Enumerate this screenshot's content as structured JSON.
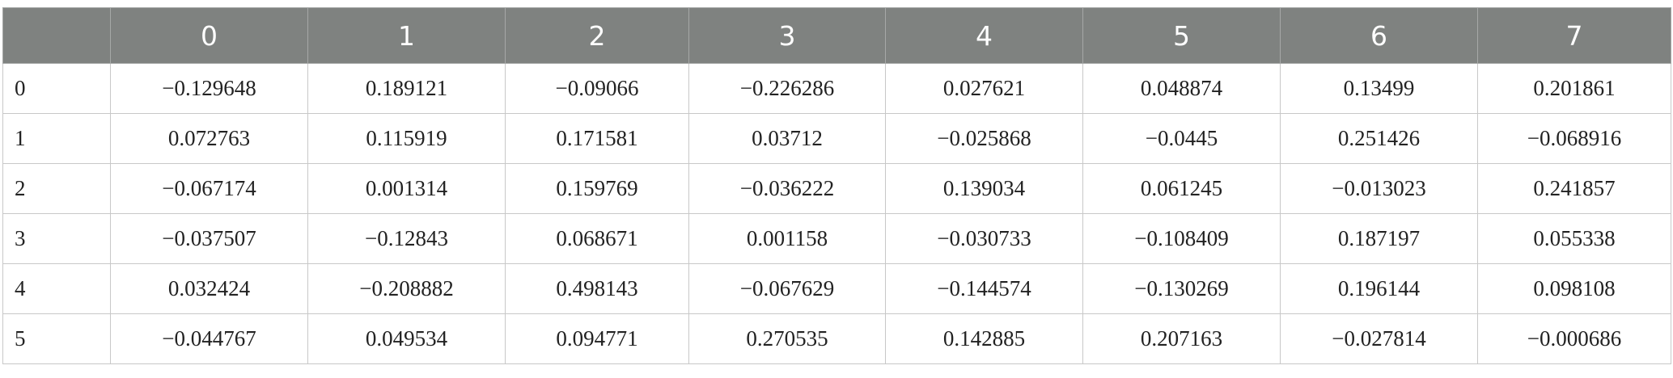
{
  "table": {
    "columns": [
      "0",
      "1",
      "2",
      "3",
      "4",
      "5",
      "6",
      "7"
    ],
    "rows": [
      {
        "label": "0",
        "cells": [
          "−0.129648",
          "0.189121",
          "−0.09066",
          "−0.226286",
          "0.027621",
          "0.048874",
          "0.13499",
          "0.201861"
        ]
      },
      {
        "label": "1",
        "cells": [
          "0.072763",
          "0.115919",
          "0.171581",
          "0.03712",
          "−0.025868",
          "−0.0445",
          "0.251426",
          "−0.068916"
        ]
      },
      {
        "label": "2",
        "cells": [
          "−0.067174",
          "0.001314",
          "0.159769",
          "−0.036222",
          "0.139034",
          "0.061245",
          "−0.013023",
          "0.241857"
        ]
      },
      {
        "label": "3",
        "cells": [
          "−0.037507",
          "−0.12843",
          "0.068671",
          "0.001158",
          "−0.030733",
          "−0.108409",
          "0.187197",
          "0.055338"
        ]
      },
      {
        "label": "4",
        "cells": [
          "0.032424",
          "−0.208882",
          "0.498143",
          "−0.067629",
          "−0.144574",
          "−0.130269",
          "0.196144",
          "0.098108"
        ]
      },
      {
        "label": "5",
        "cells": [
          "−0.044767",
          "0.049534",
          "0.094771",
          "0.270535",
          "0.142885",
          "0.207163",
          "−0.027814",
          "−0.000686"
        ]
      }
    ]
  }
}
